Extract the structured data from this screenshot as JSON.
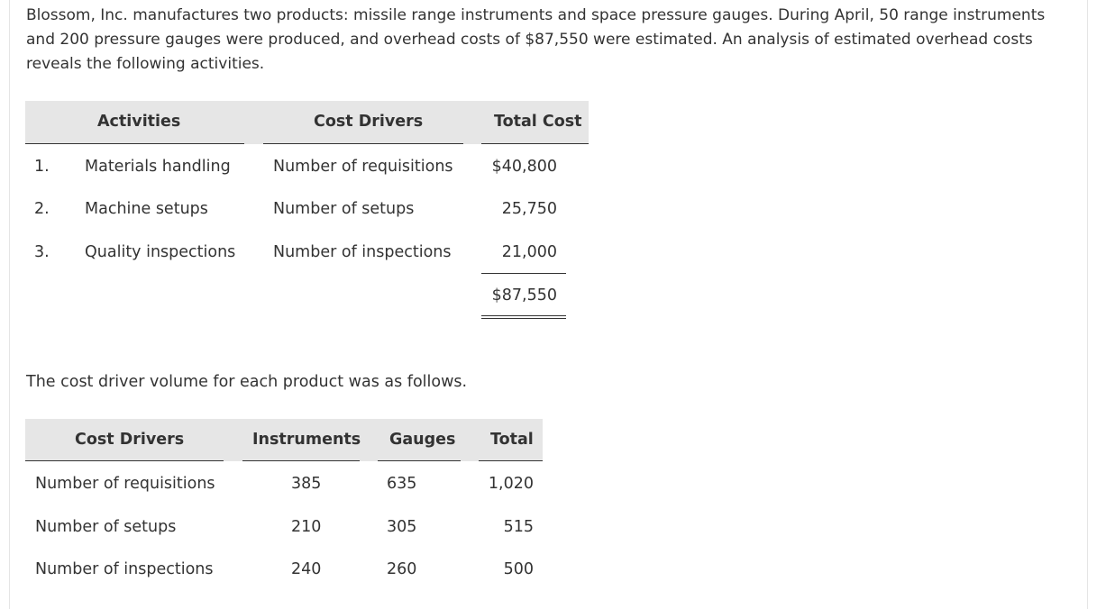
{
  "intro_text": "Blossom, Inc. manufactures two products: missile range instruments and space pressure gauges. During April, 50 range instruments and 200 pressure gauges were produced, and overhead costs of $87,550 were estimated. An analysis of estimated overhead costs reveals the following activities.",
  "table1": {
    "headers": [
      "Activities",
      "Cost Drivers",
      "Total Cost"
    ],
    "rows": [
      {
        "num": "1.",
        "activity": "Materials handling",
        "driver": "Number of requisitions",
        "cost": "$40,800"
      },
      {
        "num": "2.",
        "activity": "Machine setups",
        "driver": "Number of setups",
        "cost": "25,750"
      },
      {
        "num": "3.",
        "activity": "Quality inspections",
        "driver": "Number of inspections",
        "cost": "21,000"
      }
    ],
    "total": "$87,550"
  },
  "mid_text": "The cost driver volume for each product was as follows.",
  "table2": {
    "headers": [
      "Cost Drivers",
      "Instruments",
      "Gauges",
      "Total"
    ],
    "rows": [
      {
        "driver": "Number of requisitions",
        "instruments": "385",
        "gauges": "635",
        "total": "1,020"
      },
      {
        "driver": "Number of setups",
        "instruments": "210",
        "gauges": "305",
        "total": "515"
      },
      {
        "driver": "Number of inspections",
        "instruments": "240",
        "gauges": "260",
        "total": "500"
      }
    ]
  }
}
